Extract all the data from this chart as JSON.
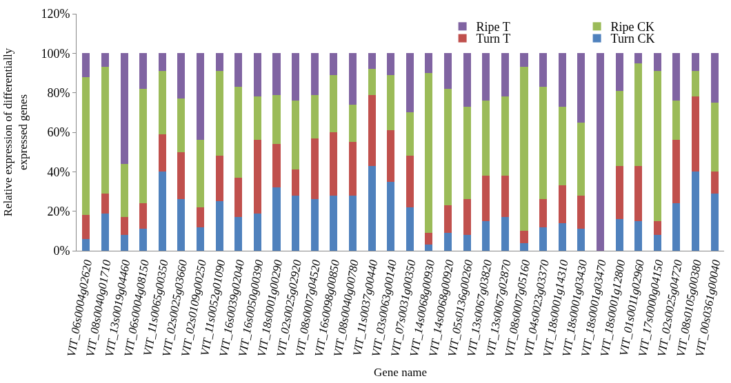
{
  "chart_data": {
    "type": "bar",
    "stacked": true,
    "xlabel": "Gene name",
    "ylabel": "Relative expression of differentially expressed genes",
    "categories": [
      "VIT_06s0004g02620",
      "VIT_08s0040g01710",
      "VIT_13s0019g04460",
      "VIT_06s0004g08150",
      "VIT_11s0065g00350",
      "VIT_02s0025g03660",
      "VIT_02s0109g00250",
      "VIT_11s0052g01090",
      "VIT_16s0039g02040",
      "VIT_16s0050g00390",
      "VIT_18s0001g00290",
      "VIT_02s0025g02920",
      "VIT_08s0007g04520",
      "VIT_16s0098g00850",
      "VIT_08s0040g00780",
      "VIT_11s0037g00440",
      "VIT_03s0063g00140",
      "VIT_07s0031g00350",
      "VIT_14s0068g00930",
      "VIT_14s0068g00920",
      "VIT_05s0136g00260",
      "VIT_13s0067g03820",
      "VIT_13s0067g02870",
      "VIT_08s0007g05160",
      "VIT_04s0023g03370",
      "VIT_18s0001g14310",
      "VIT_18s0001g03430",
      "VIT_18s0001g03470",
      "VIT_18s0001g12800",
      "VIT_01s0011g02960",
      "VIT_17s0000g04150",
      "VIT_02s0025g04720",
      "VIT_08s0105g00380",
      "VIT_00s0361g00040"
    ],
    "series": [
      {
        "name": "Turn CK",
        "color": "#4f81bd",
        "values": [
          6,
          19,
          8,
          11,
          40,
          26,
          12,
          25,
          17,
          19,
          32,
          28,
          26,
          28,
          28,
          43,
          35,
          22,
          3,
          9,
          8,
          15,
          17,
          4,
          12,
          14,
          11,
          0,
          16,
          15,
          8,
          24,
          40,
          29
        ]
      },
      {
        "name": "Turn T",
        "color": "#c0504d",
        "values": [
          12,
          10,
          9,
          13,
          19,
          24,
          10,
          23,
          20,
          37,
          22,
          13,
          31,
          32,
          27,
          36,
          26,
          26,
          6,
          14,
          18,
          23,
          21,
          6,
          14,
          19,
          17,
          0,
          27,
          28,
          7,
          32,
          38,
          11
        ]
      },
      {
        "name": "Ripe CK",
        "color": "#9bbb59",
        "values": [
          70,
          64,
          27,
          58,
          32,
          27,
          34,
          43,
          46,
          22,
          25,
          35,
          22,
          29,
          19,
          13,
          28,
          22,
          81,
          59,
          47,
          38,
          40,
          83,
          57,
          40,
          37,
          0,
          38,
          52,
          76,
          20,
          13,
          35
        ]
      },
      {
        "name": "Ripe T",
        "color": "#8064a2",
        "values": [
          12,
          7,
          56,
          18,
          9,
          23,
          44,
          9,
          17,
          22,
          21,
          24,
          21,
          11,
          26,
          8,
          11,
          30,
          10,
          18,
          27,
          24,
          22,
          7,
          17,
          27,
          35,
          100,
          19,
          5,
          9,
          24,
          9,
          25
        ]
      }
    ],
    "ylim": [
      0,
      120
    ],
    "yticks": [
      {
        "value": 0,
        "label": "0%"
      },
      {
        "value": 20,
        "label": "20%"
      },
      {
        "value": 40,
        "label": "40%"
      },
      {
        "value": 60,
        "label": "60%"
      },
      {
        "value": 80,
        "label": "80%"
      },
      {
        "value": 100,
        "label": "100%"
      },
      {
        "value": 120,
        "label": "120%"
      }
    ],
    "legend": "top right"
  }
}
